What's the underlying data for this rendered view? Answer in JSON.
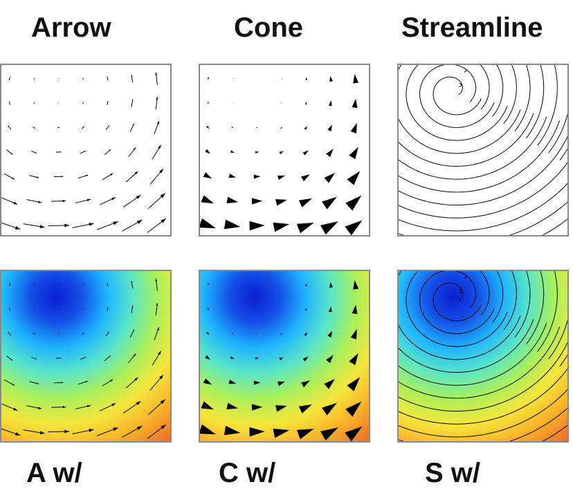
{
  "columns": [
    {
      "id": "arrow",
      "title": "Arrow",
      "caption": "A w/"
    },
    {
      "id": "cone",
      "title": "Cone",
      "caption": "C w/"
    },
    {
      "id": "streamline",
      "title": "Streamline",
      "caption": "S w/"
    }
  ],
  "colors": {
    "glyph": "#000000",
    "border": "#8a8a8a",
    "colormap": [
      "#0a1ed2",
      "#1450e6",
      "#1eb4ff",
      "#5ae6c8",
      "#aaf05a",
      "#f5e63c",
      "#fab428",
      "#f07828",
      "#e64628"
    ]
  }
}
